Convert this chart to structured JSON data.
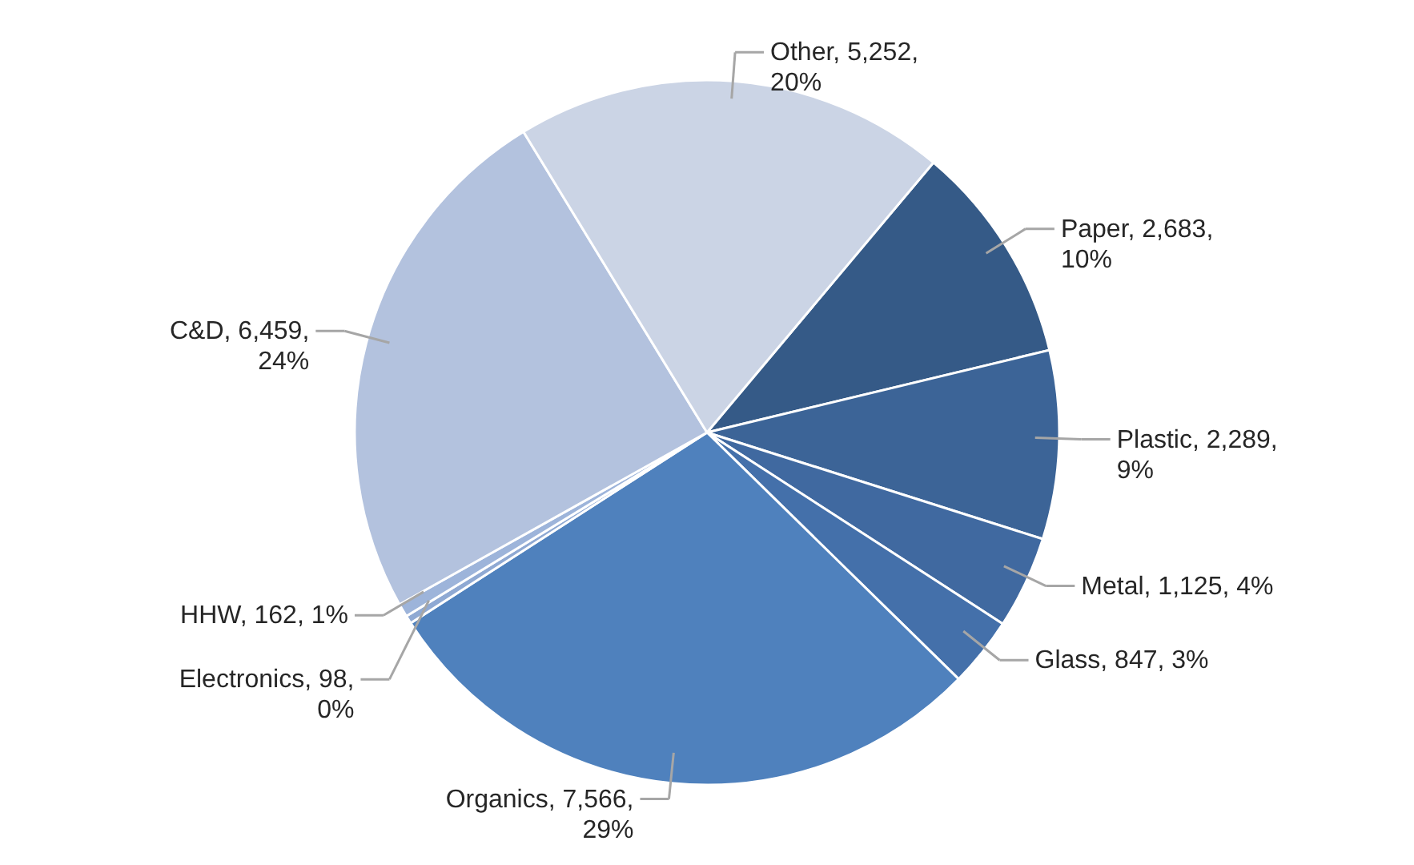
{
  "chart_data": {
    "type": "pie",
    "categories": [
      "Paper",
      "Plastic",
      "Metal",
      "Glass",
      "Organics",
      "Electronics",
      "HHW",
      "C&D",
      "Other"
    ],
    "values": [
      2683,
      2289,
      1125,
      847,
      7566,
      98,
      162,
      6459,
      5252
    ],
    "value_labels": [
      "2,683,\n10%",
      "2,289,\n9%",
      "1,125, 4%",
      "847, 3%",
      "7,566,\n29%",
      "98,\n0%",
      "162, 1%",
      "6,459,\n24%",
      "5,252,\n20%"
    ],
    "colors": [
      "#355a87",
      "#3c6497",
      "#4069a0",
      "#4470aa",
      "#4f81bd",
      "#8fa9d3",
      "#9db4da",
      "#b3c2de",
      "#cbd4e5"
    ]
  }
}
